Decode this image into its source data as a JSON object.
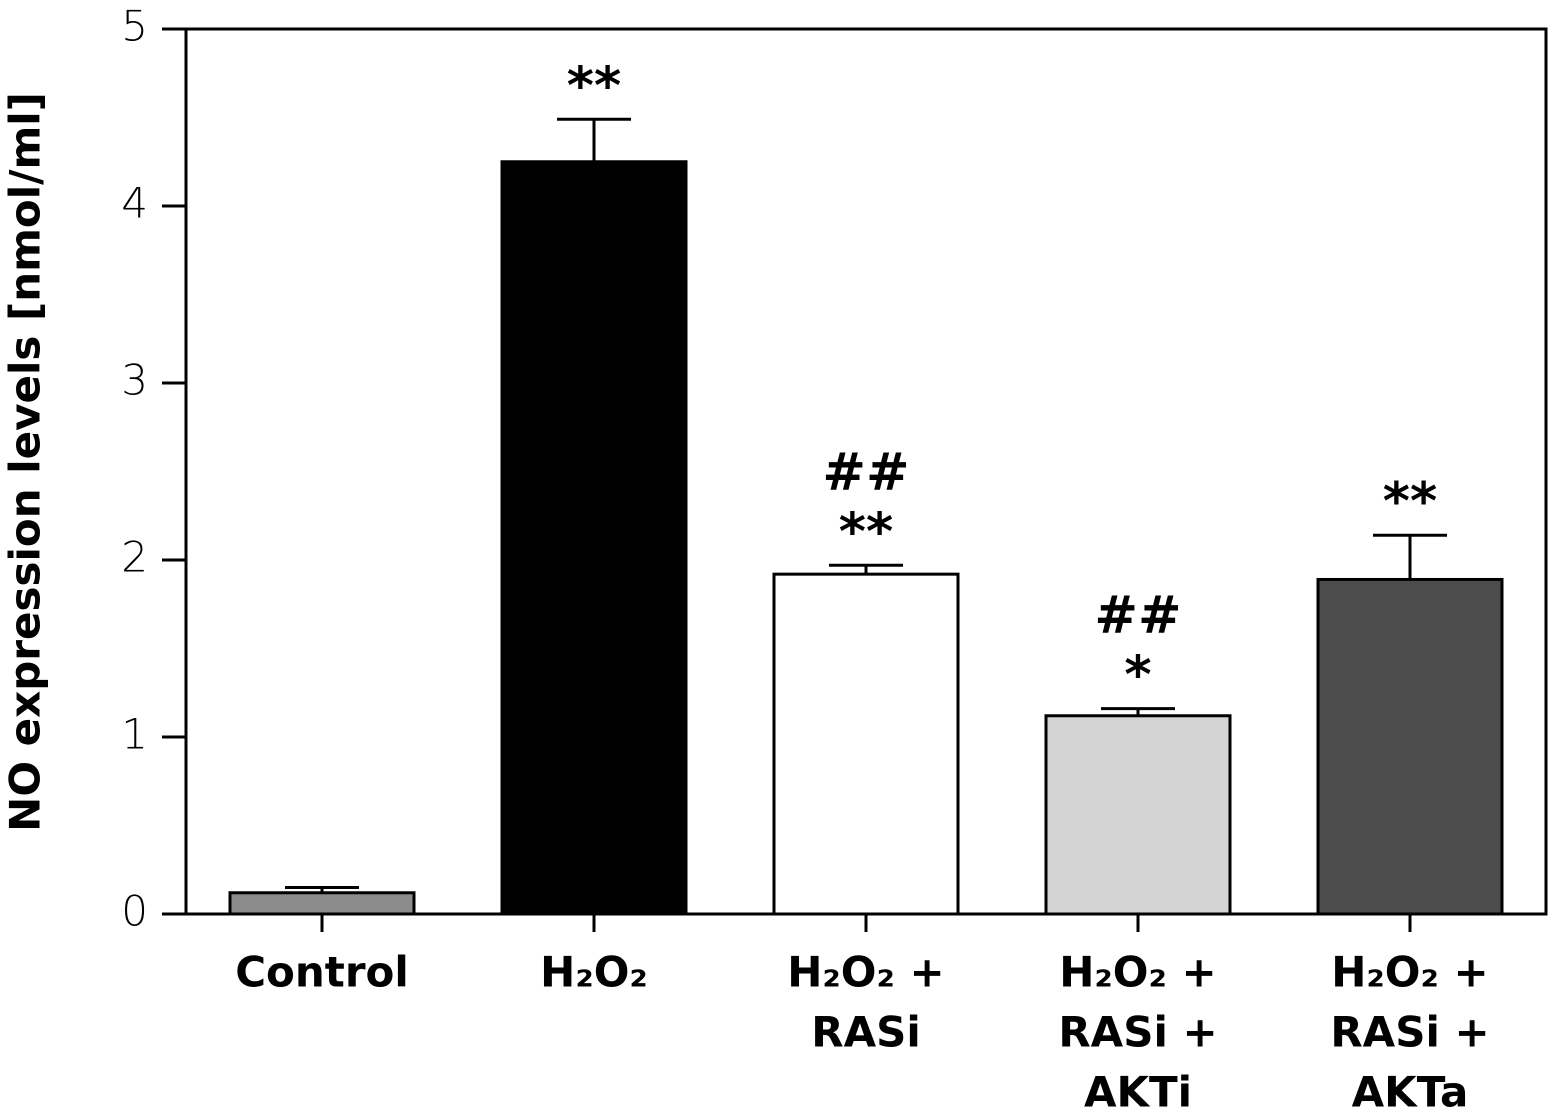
{
  "chart_data": {
    "type": "bar",
    "y_label": "NO expression levels [nmol/ml]",
    "categories": [
      [
        "Control"
      ],
      [
        "H₂O₂"
      ],
      [
        "H₂O₂ +",
        "RASi"
      ],
      [
        "H₂O₂ +",
        "RASi +",
        "AKTi"
      ],
      [
        "H₂O₂ +",
        "RASi +",
        "AKTa"
      ]
    ],
    "values": [
      0.12,
      4.25,
      1.92,
      1.12,
      1.89
    ],
    "errors": [
      0.03,
      0.24,
      0.05,
      0.04,
      0.25
    ],
    "colors": [
      "#8c8c8c",
      "#000000",
      "#ffffff",
      "#d4d4d4",
      "#4d4d4d"
    ],
    "annotations": [
      null,
      [
        "**"
      ],
      [
        "##",
        "**"
      ],
      [
        "##",
        "*"
      ],
      [
        "**"
      ]
    ],
    "ylim": [
      0,
      5
    ],
    "yticks": [
      0,
      1,
      2,
      3,
      4,
      5
    ],
    "grid": false
  }
}
